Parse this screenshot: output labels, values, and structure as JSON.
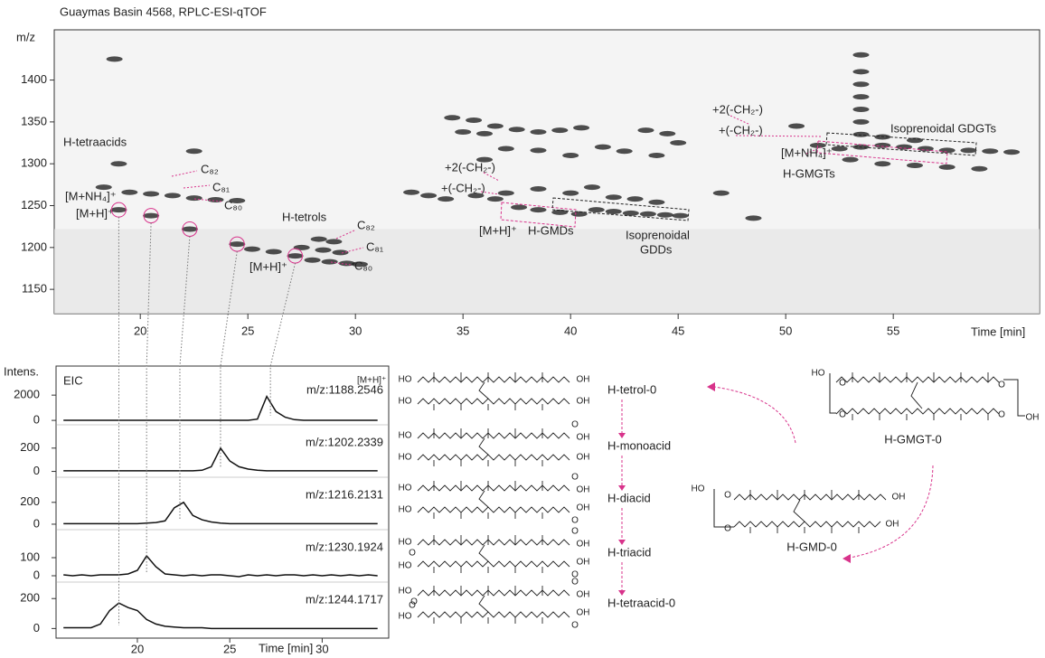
{
  "chart_data": [
    {
      "type": "scatter",
      "title": "Guaymas Basin 4568, RPLC-ESI-qTOF",
      "y_label": "m/z",
      "x_label": "Time [min]",
      "xlim": [
        16,
        61.8
      ],
      "xticks": [
        20,
        25,
        30,
        35,
        40,
        45,
        50,
        55
      ],
      "ylim": [
        1121,
        1460
      ],
      "yticks": [
        1150,
        1200,
        1250,
        1300,
        1350,
        1400
      ],
      "color": "#1e1e1e",
      "x": [
        18.3,
        19.5,
        20.5,
        21.5,
        22.5,
        23.5,
        24.5,
        19,
        20.5,
        22.3,
        24.5,
        25.2,
        26.2,
        27.2,
        28,
        28.8,
        29.6,
        30.2,
        27.5,
        28.5,
        29.3,
        28.3,
        29,
        32.6,
        33.4,
        34.2,
        35.6,
        36.5,
        37.6,
        38.5,
        39.5,
        40.4,
        41.2,
        42,
        42.8,
        43.6,
        44.4,
        45.1,
        37,
        38.5,
        40,
        41,
        42,
        43,
        44,
        34.5,
        35.5,
        36.5,
        35,
        36,
        37.5,
        38.5,
        39.5,
        40.5,
        41.5,
        42.5,
        43.5,
        44.5,
        45,
        44,
        37,
        38.5,
        40,
        36,
        50.5,
        51.5,
        52.5,
        53.5,
        54.5,
        55.5,
        56.5,
        57.5,
        58.5,
        59.5,
        60.5,
        53,
        54.5,
        56,
        57.5,
        59,
        53.5,
        54.5,
        56,
        53.5,
        53.5,
        53.5,
        53.5,
        53.5,
        53.5,
        19,
        22.5,
        18.8,
        47,
        48.5
      ],
      "y": [
        1272,
        1266,
        1264,
        1262,
        1259,
        1257,
        1256,
        1245,
        1238,
        1222,
        1204,
        1198,
        1195,
        1190,
        1185,
        1183,
        1181,
        1180,
        1200,
        1197,
        1194,
        1210,
        1207,
        1266,
        1262,
        1258,
        1262,
        1258,
        1248,
        1245,
        1242,
        1240,
        1245,
        1243,
        1241,
        1240,
        1239,
        1238,
        1265,
        1270,
        1265,
        1272,
        1260,
        1258,
        1254,
        1355,
        1352,
        1345,
        1338,
        1336,
        1341,
        1338,
        1340,
        1343,
        1320,
        1315,
        1340,
        1336,
        1325,
        1310,
        1318,
        1316,
        1310,
        1305,
        1345,
        1322,
        1318,
        1320,
        1322,
        1320,
        1318,
        1316,
        1316,
        1315,
        1314,
        1305,
        1300,
        1298,
        1296,
        1294,
        1335,
        1332,
        1328,
        1350,
        1365,
        1380,
        1395,
        1410,
        1430,
        1300,
        1315,
        1425,
        1265,
        1235
      ],
      "annotations": [
        {
          "text": "H-tetraacids",
          "color": "#d8338b"
        },
        {
          "text": "C₈₂",
          "color": "#d8338b"
        },
        {
          "text": "C₈₁",
          "color": "#d8338b"
        },
        {
          "text": "C₈₀",
          "color": "#d8338b"
        },
        {
          "text": "[M+NH₄]⁺",
          "color": "#d8338b"
        },
        {
          "text": "[M+H]⁺",
          "color": "#d8338b"
        },
        {
          "text": "H-tetrols",
          "color": "#d8338b"
        },
        {
          "text": "C₈₂",
          "color": "#d8338b"
        },
        {
          "text": "C₈₁",
          "color": "#d8338b"
        },
        {
          "text": "C₈₀",
          "color": "#d8338b"
        },
        {
          "text": "[M+H]⁺",
          "color": "#d8338b"
        },
        {
          "text": "+2(-CH₂-)",
          "color": "#d8338b"
        },
        {
          "text": "+(-CH₂-)",
          "color": "#d8338b"
        },
        {
          "text": "[M+H]⁺",
          "color": "#d8338b"
        },
        {
          "text": "H-GMDs",
          "color": "#d8338b"
        },
        {
          "text": "Isoprenoidal",
          "color": "#222222"
        },
        {
          "text": "GDDs",
          "color": "#222222"
        },
        {
          "text": "+2(-CH₂-)",
          "color": "#d8338b"
        },
        {
          "text": "+(-CH₂-)",
          "color": "#d8338b"
        },
        {
          "text": "[M+NH₄]⁺",
          "color": "#d8338b"
        },
        {
          "text": "H-GMGTs",
          "color": "#d8338b"
        },
        {
          "text": "Isoprenoidal GDGTs",
          "color": "#222222"
        }
      ]
    },
    {
      "type": "line",
      "title": "EIC",
      "y_label": "Intens.",
      "x_label": "Time [min]",
      "legend_title": "[M+H]⁺",
      "color": "#111111",
      "xlim": [
        15.6,
        33.6
      ],
      "xticks": [
        20,
        25,
        30
      ],
      "x": [
        16,
        16.5,
        17,
        17.5,
        18,
        18.5,
        19,
        19.5,
        20,
        20.5,
        21,
        21.5,
        22,
        22.5,
        23,
        23.5,
        24,
        24.5,
        25,
        25.5,
        26,
        26.5,
        27,
        27.5,
        28,
        28.5,
        29,
        29.5,
        30,
        30.5,
        31,
        31.5,
        32,
        32.5,
        33
      ],
      "series": [
        {
          "name": "m/z:1188.2546",
          "ylim": [
            -350,
            3800
          ],
          "yticks": [
            0,
            2000
          ],
          "values": [
            10,
            10,
            10,
            10,
            10,
            10,
            10,
            10,
            10,
            10,
            10,
            10,
            10,
            10,
            10,
            10,
            10,
            10,
            10,
            10,
            10,
            100,
            1900,
            700,
            250,
            60,
            10,
            10,
            10,
            10,
            10,
            10,
            10,
            10,
            10
          ]
        },
        {
          "name": "m/z:1202.2339",
          "ylim": [
            -50,
            400
          ],
          "yticks": [
            0,
            200
          ],
          "values": [
            5,
            5,
            5,
            5,
            5,
            5,
            5,
            5,
            5,
            5,
            5,
            5,
            5,
            5,
            5,
            10,
            40,
            200,
            90,
            40,
            20,
            10,
            5,
            5,
            5,
            5,
            5,
            5,
            5,
            5,
            5,
            5,
            5,
            5,
            5
          ]
        },
        {
          "name": "m/z:1216.2131",
          "ylim": [
            -50,
            430
          ],
          "yticks": [
            0,
            200
          ],
          "values": [
            5,
            5,
            5,
            5,
            5,
            5,
            5,
            5,
            5,
            10,
            15,
            30,
            150,
            200,
            80,
            40,
            20,
            10,
            5,
            5,
            5,
            5,
            5,
            5,
            5,
            5,
            5,
            5,
            5,
            5,
            5,
            5,
            5,
            5,
            5
          ]
        },
        {
          "name": "m/z:1230.1924",
          "ylim": [
            -35,
            255
          ],
          "yticks": [
            0,
            100
          ],
          "values": [
            5,
            0,
            5,
            0,
            5,
            5,
            5,
            10,
            30,
            110,
            50,
            10,
            5,
            0,
            5,
            0,
            5,
            5,
            0,
            -5,
            5,
            0,
            5,
            0,
            5,
            5,
            0,
            5,
            0,
            5,
            0,
            5,
            0,
            5,
            0
          ]
        },
        {
          "name": "m/z:1244.1717",
          "ylim": [
            -40,
            310
          ],
          "yticks": [
            0,
            200
          ],
          "values": [
            5,
            5,
            5,
            5,
            30,
            120,
            170,
            140,
            120,
            60,
            30,
            15,
            10,
            5,
            5,
            5,
            0,
            0,
            0,
            0,
            0,
            0,
            0,
            0,
            0,
            0,
            0,
            0,
            0,
            0,
            0,
            0,
            0,
            0,
            0
          ]
        }
      ]
    }
  ],
  "structures": [
    {
      "name": "H-tetrol-0",
      "atoms": [
        "HO",
        "OH",
        "HO",
        "OH"
      ]
    },
    {
      "name": "H-monoacid",
      "atoms": [
        "HO",
        "O",
        "OH",
        "HO",
        "OH"
      ]
    },
    {
      "name": "H-diacid",
      "atoms": [
        "HO",
        "O",
        "OH",
        "HO",
        "OH",
        "O"
      ]
    },
    {
      "name": "H-triacid",
      "atoms": [
        "HO",
        "O",
        "OH",
        "O",
        "HO",
        "OH",
        "O"
      ]
    },
    {
      "name": "H-tetraacid-0",
      "atoms": [
        "HO",
        "O",
        "O",
        "OH",
        "O",
        "HO",
        "OH",
        "O"
      ]
    }
  ],
  "macrocycles": [
    {
      "name": "H-GMGT-0",
      "atoms": [
        "HO",
        "O",
        "O",
        "O",
        "O",
        "OH"
      ]
    },
    {
      "name": "H-GMD-0",
      "atoms": [
        "HO",
        "O",
        "O",
        "OH",
        "OH"
      ]
    }
  ]
}
